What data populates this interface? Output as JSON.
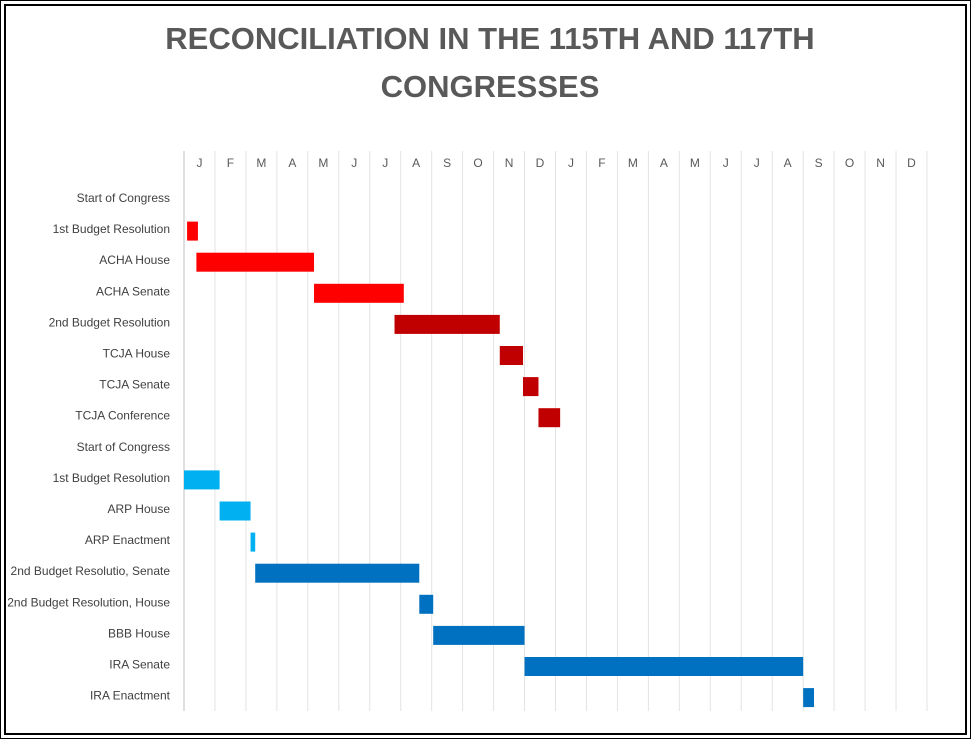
{
  "chart_data": {
    "type": "bar",
    "orientation": "horizontal-gantt",
    "title_lines": [
      "RECONCILIATION IN THE 115TH AND 117TH",
      "CONGRESSES"
    ],
    "x_tick_labels": [
      "J",
      "F",
      "M",
      "A",
      "M",
      "J",
      "J",
      "A",
      "S",
      "O",
      "N",
      "D",
      "J",
      "F",
      "M",
      "A",
      "M",
      "J",
      "J",
      "A",
      "S",
      "O",
      "N",
      "D"
    ],
    "x_unit": "month index (0 = start of January, year 1 of the Congress)",
    "xlim": [
      0,
      24
    ],
    "grid": true,
    "legend": "none",
    "tasks": [
      {
        "label": "Start of Congress",
        "start": 0,
        "end": 0,
        "color": "#ff0000"
      },
      {
        "label": "1st Budget Resolution",
        "start": 0.1,
        "end": 0.45,
        "color": "#ff0000"
      },
      {
        "label": "ACHA House",
        "start": 0.4,
        "end": 4.2,
        "color": "#ff0000"
      },
      {
        "label": "ACHA Senate",
        "start": 4.2,
        "end": 7.1,
        "color": "#ff0000"
      },
      {
        "label": "2nd Budget Resolution",
        "start": 6.8,
        "end": 10.2,
        "color": "#c00000"
      },
      {
        "label": "TCJA House",
        "start": 10.2,
        "end": 10.95,
        "color": "#c00000"
      },
      {
        "label": "TCJA Senate",
        "start": 10.95,
        "end": 11.45,
        "color": "#c00000"
      },
      {
        "label": "TCJA Conference",
        "start": 11.45,
        "end": 12.15,
        "color": "#c00000"
      },
      {
        "label": "Start of Congress",
        "start": 0,
        "end": 0,
        "color": "#00b0f0"
      },
      {
        "label": "1st Budget Resolution",
        "start": 0.0,
        "end": 1.15,
        "color": "#00b0f0"
      },
      {
        "label": "ARP House",
        "start": 1.15,
        "end": 2.15,
        "color": "#00b0f0"
      },
      {
        "label": "ARP Enactment",
        "start": 2.15,
        "end": 2.3,
        "color": "#00b0f0"
      },
      {
        "label": "2nd Budget Resolutio, Senate",
        "start": 2.3,
        "end": 7.6,
        "color": "#0070c0"
      },
      {
        "label": "2nd Budget Resolution, House",
        "start": 7.6,
        "end": 8.05,
        "color": "#0070c0"
      },
      {
        "label": "BBB House",
        "start": 8.05,
        "end": 11.0,
        "color": "#0070c0"
      },
      {
        "label": "IRA Senate",
        "start": 11.0,
        "end": 20.0,
        "color": "#0070c0"
      },
      {
        "label": "IRA Enactment",
        "start": 20.0,
        "end": 20.35,
        "color": "#0070c0"
      }
    ]
  }
}
